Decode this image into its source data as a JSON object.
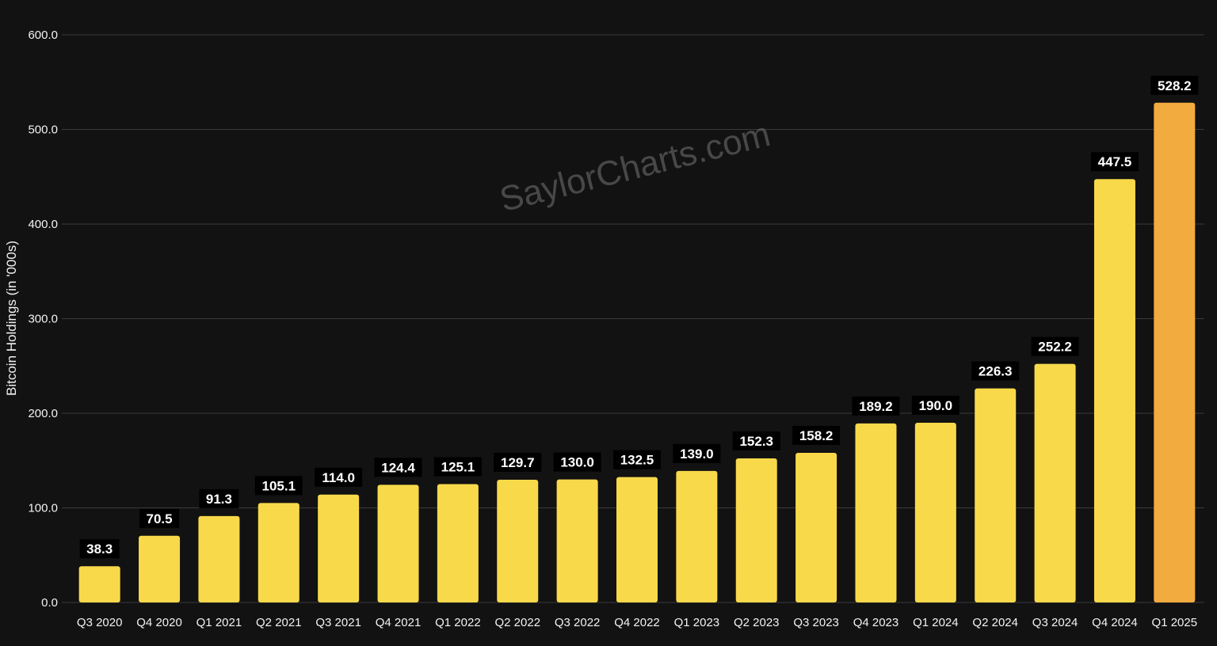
{
  "watermark": "SaylorCharts.com",
  "colors": {
    "background": "#121212",
    "bar": "#f8d94a",
    "bar_highlight": "#f2ab3e",
    "grid": "#3a3a3a",
    "label_bg": "#000000"
  },
  "chart_data": {
    "type": "bar",
    "title": "",
    "xlabel": "",
    "ylabel": "Bitcoin Holdings (in '000s)",
    "ylim": [
      0,
      600
    ],
    "yticks": [
      "0.0",
      "100.0",
      "200.0",
      "300.0",
      "400.0",
      "500.0",
      "600.0"
    ],
    "grid": true,
    "categories": [
      "Q3 2020",
      "Q4 2020",
      "Q1 2021",
      "Q2 2021",
      "Q3 2021",
      "Q4 2021",
      "Q1 2022",
      "Q2 2022",
      "Q3 2022",
      "Q4 2022",
      "Q1 2023",
      "Q2 2023",
      "Q3 2023",
      "Q4 2023",
      "Q1 2024",
      "Q2 2024",
      "Q3 2024",
      "Q4 2024",
      "Q1 2025"
    ],
    "values": [
      38.3,
      70.5,
      91.3,
      105.1,
      114.0,
      124.4,
      125.1,
      129.7,
      130.0,
      132.5,
      139.0,
      152.3,
      158.2,
      189.2,
      190.0,
      226.3,
      252.2,
      447.5,
      528.2
    ],
    "data_labels": [
      "38.3",
      "70.5",
      "91.3",
      "105.1",
      "114.0",
      "124.4",
      "125.1",
      "129.7",
      "130.0",
      "132.5",
      "139.0",
      "152.3",
      "158.2",
      "189.2",
      "190.0",
      "226.3",
      "252.2",
      "447.5",
      "528.2"
    ],
    "highlight_category": "Q1 2025"
  }
}
